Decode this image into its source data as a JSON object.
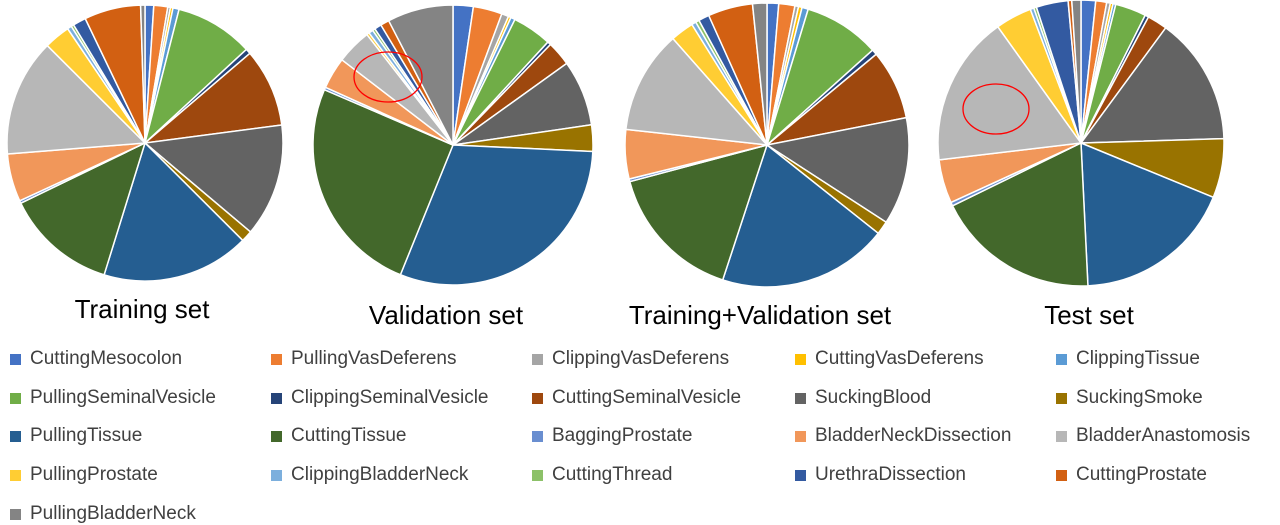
{
  "chart_data": {
    "type": "pie",
    "categories": [
      "CuttingMesocolon",
      "PullingVasDeferens",
      "ClippingVasDeferens",
      "CuttingVasDeferens",
      "ClippingTissue",
      "PullingSeminalVesicle",
      "ClippingSeminalVesicle",
      "CuttingSeminalVesicle",
      "SuckingBlood",
      "SuckingSmoke",
      "PullingTissue",
      "CuttingTissue",
      "BaggingProstate",
      "BladderNeckDissection",
      "BladderAnastomosis",
      "PullingProstate",
      "ClippingBladderNeck",
      "CuttingThread",
      "UrethraDissection",
      "CuttingProstate",
      "PullingBladderNeck"
    ],
    "colors": [
      "#4472C4",
      "#ED7D31",
      "#A5A5A5",
      "#FFC000",
      "#5B9BD5",
      "#70AD47",
      "#264478",
      "#9E480E",
      "#636363",
      "#997300",
      "#255E91",
      "#43682B",
      "#698ED0",
      "#F1975A",
      "#B7B7B7",
      "#FFCD33",
      "#7CAFDD",
      "#8CC168",
      "#335AA1",
      "#D26012",
      "#848484"
    ],
    "slice_order": [
      0,
      1,
      2,
      3,
      4,
      5,
      6,
      7,
      8,
      9,
      10,
      11,
      12,
      13,
      14,
      15,
      16,
      17,
      18,
      19,
      20
    ],
    "start_angle_deg": 0,
    "series": [
      {
        "name": "Training set",
        "values": [
          1.0,
          1.6,
          0.3,
          0.3,
          0.7,
          9.0,
          0.6,
          9.0,
          13.0,
          1.3,
          17.0,
          12.8,
          0.3,
          5.5,
          13.5,
          3.0,
          0.5,
          0.3,
          1.5,
          6.5,
          0.5
        ]
      },
      {
        "name": "Validation set",
        "values": [
          2.3,
          3.3,
          0.8,
          0.3,
          0.5,
          4.5,
          0.4,
          2.8,
          7.5,
          3.0,
          30.0,
          25.0,
          0.3,
          3.6,
          4.0,
          0.3,
          0.5,
          0.3,
          0.8,
          1.0,
          7.5
        ]
      },
      {
        "name": "Training+Validation set",
        "values": [
          1.3,
          1.8,
          0.4,
          0.4,
          0.7,
          8.5,
          0.6,
          7.8,
          12.0,
          1.5,
          19.0,
          15.5,
          0.3,
          5.5,
          11.5,
          2.6,
          0.5,
          0.4,
          1.2,
          5.0,
          1.6
        ]
      },
      {
        "name": "Test set",
        "values": [
          1.6,
          1.2,
          0.4,
          0.3,
          0.3,
          3.4,
          0.4,
          2.2,
          14.0,
          6.5,
          17.5,
          18.0,
          0.4,
          4.8,
          16.5,
          4.0,
          0.4,
          0.3,
          3.5,
          0.4,
          1.0
        ]
      }
    ],
    "annotations": [
      {
        "series": "Validation set",
        "type": "circle",
        "color": "#FF0000",
        "target": "BladderAnastomosis"
      },
      {
        "series": "Test set",
        "type": "circle",
        "color": "#FF0000",
        "target": "BladderAnastomosis"
      }
    ],
    "legend_position": "bottom"
  }
}
